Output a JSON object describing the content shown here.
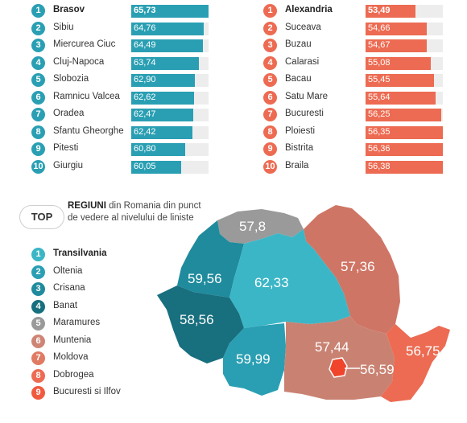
{
  "top_cities_quiet": [
    {
      "rank": "1",
      "city": "Brasov",
      "value": "65,73",
      "level": 65.73
    },
    {
      "rank": "2",
      "city": "Sibiu",
      "value": "64,76",
      "level": 64.76
    },
    {
      "rank": "3",
      "city": "Miercurea Ciuc",
      "value": "64,49",
      "level": 64.49
    },
    {
      "rank": "4",
      "city": "Cluj-Napoca",
      "value": "63,74",
      "level": 63.74
    },
    {
      "rank": "5",
      "city": "Slobozia",
      "value": "62,90",
      "level": 62.9
    },
    {
      "rank": "6",
      "city": "Ramnicu Valcea",
      "value": "62,62",
      "level": 62.62
    },
    {
      "rank": "7",
      "city": "Oradea",
      "value": "62,47",
      "level": 62.47
    },
    {
      "rank": "8",
      "city": "Sfantu Gheorghe",
      "value": "62,42",
      "level": 62.42
    },
    {
      "rank": "9",
      "city": "Pitesti",
      "value": "60,80",
      "level": 60.8
    },
    {
      "rank": "10",
      "city": "Giurgiu",
      "value": "60,05",
      "level": 60.05
    }
  ],
  "bottom_cities": [
    {
      "rank": "1",
      "city": "Alexandria",
      "value": "53,49",
      "level": 53.49
    },
    {
      "rank": "2",
      "city": "Suceava",
      "value": "54,66",
      "level": 54.66
    },
    {
      "rank": "3",
      "city": "Buzau",
      "value": "54,67",
      "level": 54.67
    },
    {
      "rank": "4",
      "city": "Calarasi",
      "value": "55,08",
      "level": 55.08
    },
    {
      "rank": "5",
      "city": "Bacau",
      "value": "55,45",
      "level": 55.45
    },
    {
      "rank": "6",
      "city": "Satu Mare",
      "value": "55,64",
      "level": 55.64
    },
    {
      "rank": "7",
      "city": "Bucuresti",
      "value": "56,25",
      "level": 56.25
    },
    {
      "rank": "8",
      "city": "Ploiesti",
      "value": "56,35",
      "level": 56.35
    },
    {
      "rank": "9",
      "city": "Bistrita",
      "value": "56,36",
      "level": 56.36
    },
    {
      "rank": "10",
      "city": "Braila",
      "value": "56,38",
      "level": 56.38
    }
  ],
  "regions_section": {
    "top_label": "TOP",
    "title_bold": "REGIUNI",
    "title_rest": " din Romania din punct de vedere al nivelului de liniste"
  },
  "regions": [
    {
      "rank": "1",
      "name": "Transilvania",
      "color": "#3bb6c6"
    },
    {
      "rank": "2",
      "name": "Oltenia",
      "color": "#2a9fb3"
    },
    {
      "rank": "3",
      "name": "Crisana",
      "color": "#1f8b9d"
    },
    {
      "rank": "4",
      "name": "Banat",
      "color": "#186f7e"
    },
    {
      "rank": "5",
      "name": "Maramures",
      "color": "#9a9a9a"
    },
    {
      "rank": "6",
      "name": "Muntenia",
      "color": "#cf8575"
    },
    {
      "rank": "7",
      "name": "Moldova",
      "color": "#e07a63"
    },
    {
      "rank": "8",
      "name": "Dobrogea",
      "color": "#ec6b52"
    },
    {
      "rank": "9",
      "name": "Bucuresti si Ilfov",
      "color": "#f05a3f"
    }
  ],
  "map_values": {
    "maramures": "57,8",
    "crisana": "59,56",
    "transilvania": "62,33",
    "moldova": "57,36",
    "banat": "58,56",
    "oltenia": "59,99",
    "muntenia": "57,44",
    "bucuresti": "56,59",
    "dobrogea": "56,75"
  },
  "colors": {
    "teal": "#2a9fb3",
    "coral": "#ec6b52",
    "grey": "#9a9a9a"
  }
}
